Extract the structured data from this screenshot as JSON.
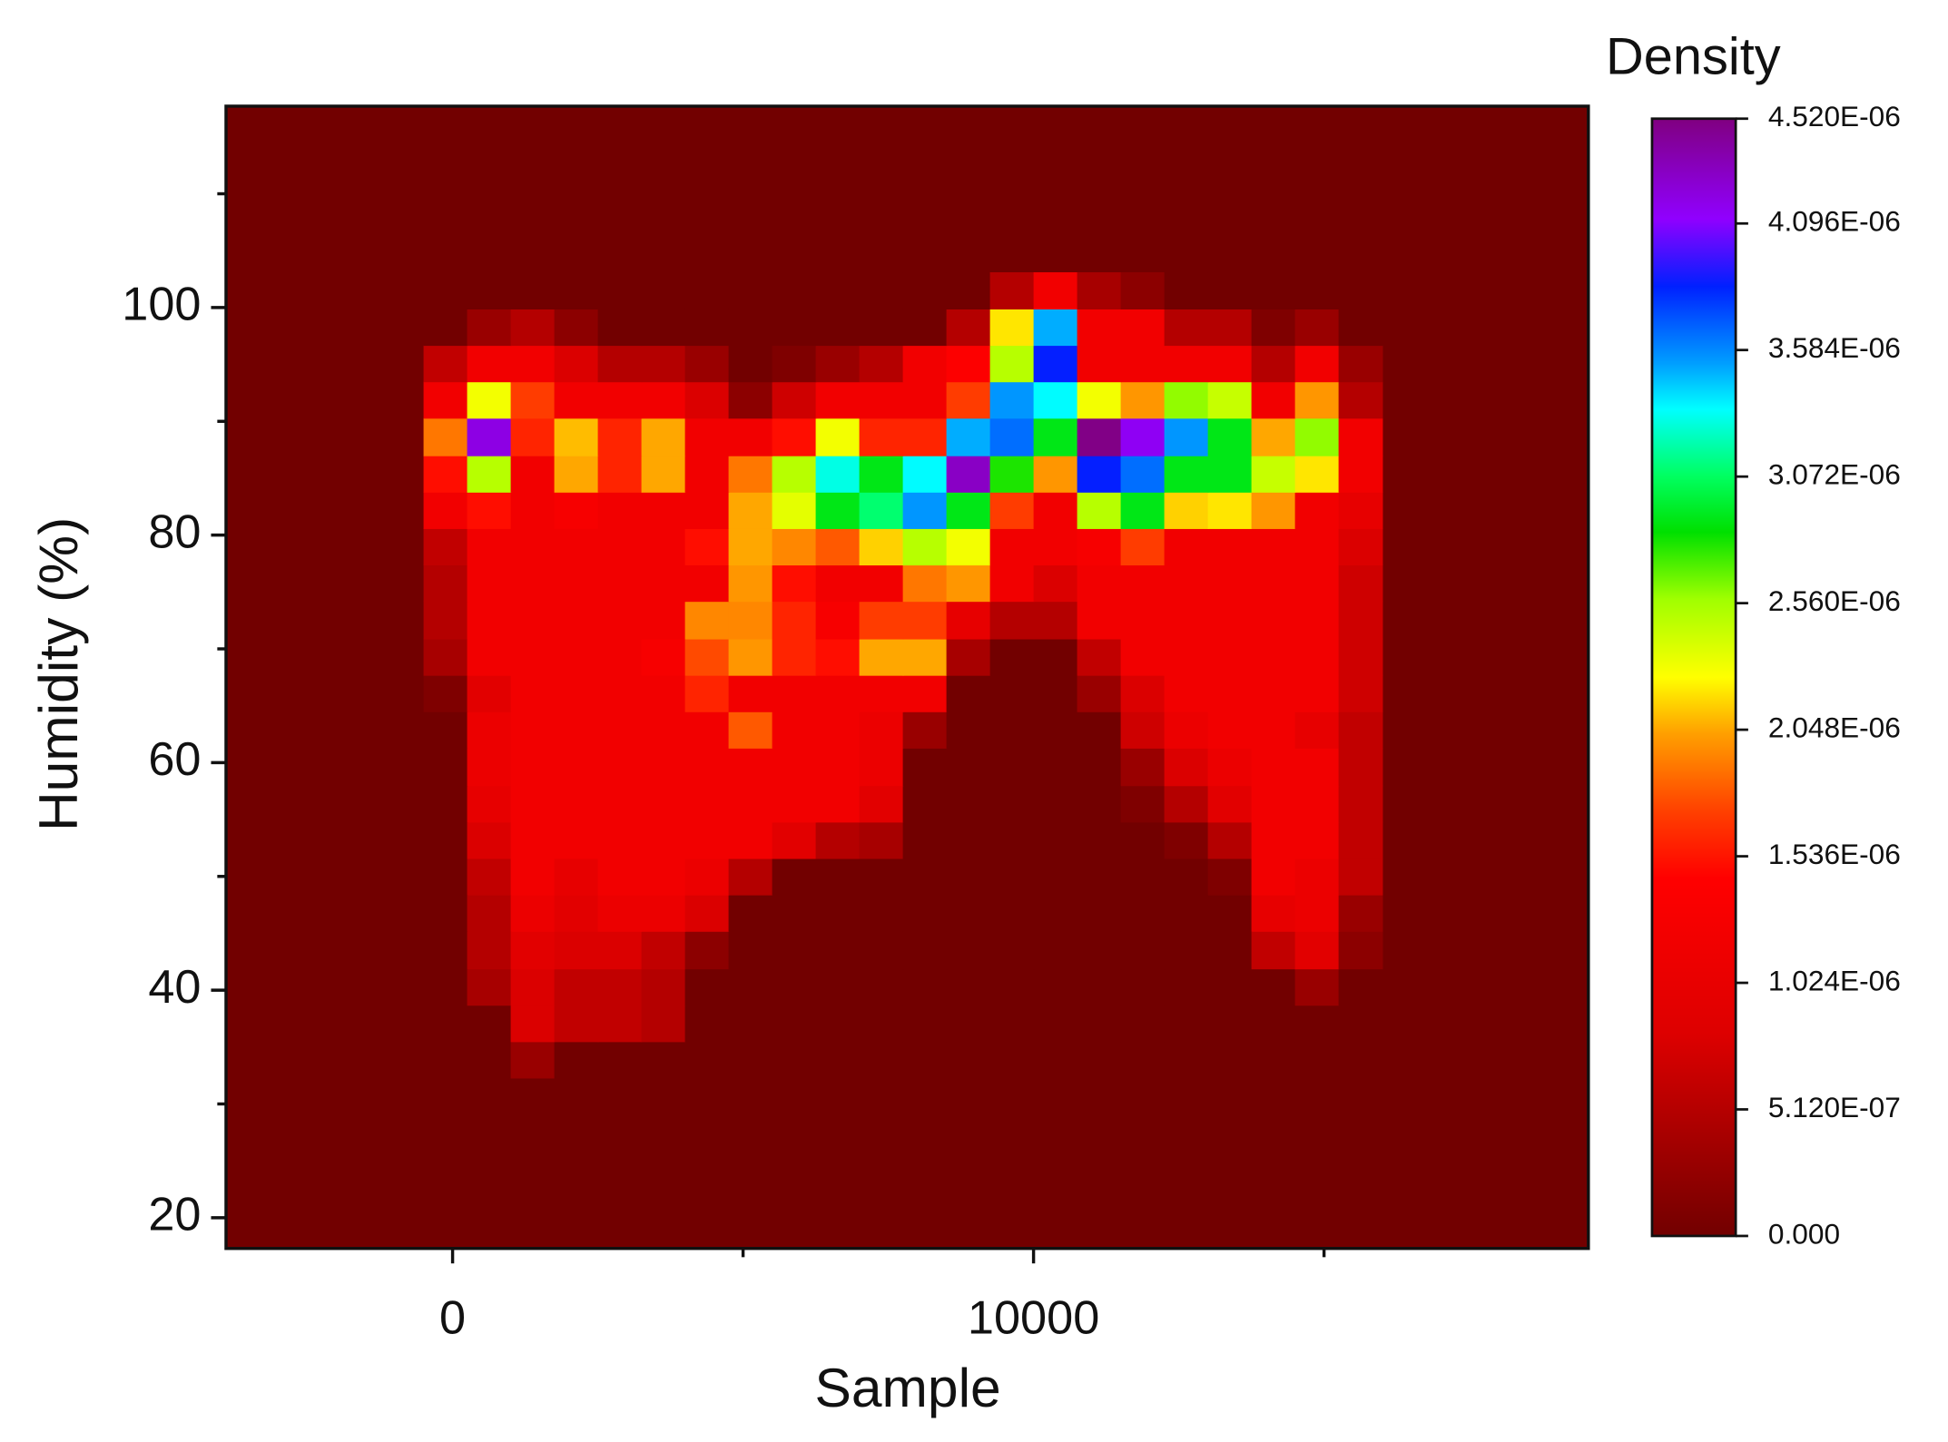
{
  "chart_data": {
    "type": "heatmap",
    "x_label": "Sample",
    "y_label": "Humidity (%)",
    "colorbar_title": "Density",
    "x_bins": [
      -500,
      250,
      1000,
      1750,
      2500,
      3250,
      4000,
      4750,
      5500,
      6250,
      7000,
      7750,
      8500,
      9250,
      10000,
      10750,
      11500,
      12250,
      13000,
      13750,
      14500,
      15250,
      16000
    ],
    "y_bins": [
      32.3,
      35.5,
      38.7,
      41.9,
      45.2,
      48.4,
      51.6,
      54.8,
      58.0,
      61.3,
      64.5,
      67.7,
      70.9,
      74.2,
      77.4,
      80.6,
      83.8,
      87.0,
      90.3,
      93.5,
      96.7,
      99.9,
      103.1
    ],
    "z": [
      [
        0,
        0,
        3e-07,
        0,
        0,
        0,
        0,
        0,
        0,
        0,
        0,
        0,
        0,
        0,
        0,
        0,
        0,
        0,
        0,
        0,
        0,
        0
      ],
      [
        0,
        0,
        8e-07,
        6e-07,
        6e-07,
        5e-07,
        0,
        0,
        0,
        0,
        0,
        0,
        0,
        0,
        0,
        0,
        0,
        0,
        0,
        0,
        0,
        0
      ],
      [
        0,
        4e-07,
        8e-07,
        6e-07,
        6e-07,
        5e-07,
        0,
        0,
        0,
        0,
        0,
        0,
        0,
        0,
        0,
        0,
        0,
        0,
        0,
        0,
        3e-07,
        0
      ],
      [
        0,
        5e-07,
        9e-07,
        8e-07,
        8e-07,
        6e-07,
        2e-07,
        0,
        0,
        0,
        0,
        0,
        0,
        0,
        0,
        0,
        0,
        0,
        0,
        6e-07,
        9e-07,
        2e-07
      ],
      [
        0,
        5e-07,
        1.1e-06,
        9e-07,
        1.1e-06,
        1.1e-06,
        8e-07,
        0,
        0,
        0,
        0,
        0,
        0,
        0,
        0,
        0,
        0,
        0,
        0,
        1e-06,
        1.1e-06,
        3e-07
      ],
      [
        0,
        6e-07,
        1.2e-06,
        1e-06,
        1.2e-06,
        1.2e-06,
        1.1e-06,
        5e-07,
        0,
        0,
        0,
        0,
        0,
        0,
        0,
        0,
        0,
        0,
        1e-07,
        1.2e-06,
        1.1e-06,
        6e-07
      ],
      [
        0,
        8e-07,
        1.2e-06,
        1.2e-06,
        1.2e-06,
        1.2e-06,
        1.2e-06,
        1.2e-06,
        9e-07,
        5e-07,
        4e-07,
        0,
        0,
        0,
        0,
        0,
        0,
        1e-07,
        5e-07,
        1.2e-06,
        1.2e-06,
        6e-07
      ],
      [
        0,
        1e-06,
        1.2e-06,
        1.2e-06,
        1.2e-06,
        1.2e-06,
        1.2e-06,
        1.2e-06,
        1.2e-06,
        1.2e-06,
        9e-07,
        0,
        0,
        0,
        0,
        0,
        1e-07,
        5e-07,
        9e-07,
        1.2e-06,
        1.2e-06,
        6e-07
      ],
      [
        0,
        1.1e-06,
        1.2e-06,
        1.2e-06,
        1.2e-06,
        1.2e-06,
        1.2e-06,
        1.2e-06,
        1.2e-06,
        1.2e-06,
        1.1e-06,
        0,
        0,
        0,
        0,
        0,
        3e-07,
        8e-07,
        1.1e-06,
        1.2e-06,
        1.2e-06,
        6e-07
      ],
      [
        0,
        1.1e-06,
        1.2e-06,
        1.2e-06,
        1.2e-06,
        1.2e-06,
        1.2e-06,
        1.8e-06,
        1.2e-06,
        1.2e-06,
        1.1e-06,
        3e-07,
        0,
        0,
        0,
        0,
        7e-07,
        1.1e-06,
        1.2e-06,
        1.2e-06,
        1e-06,
        6e-07
      ],
      [
        1e-07,
        9e-07,
        1.2e-06,
        1.2e-06,
        1.2e-06,
        1.2e-06,
        1.6e-06,
        1.2e-06,
        1.2e-06,
        1.2e-06,
        1.2e-06,
        1.2e-06,
        0,
        0,
        0,
        3e-07,
        8e-07,
        1.2e-06,
        1.2e-06,
        1.2e-06,
        1.2e-06,
        7e-07
      ],
      [
        4e-07,
        1.2e-06,
        1.2e-06,
        1.2e-06,
        1.2e-06,
        1.3e-06,
        1.75e-06,
        2e-06,
        1.6e-06,
        1.5e-06,
        2.05e-06,
        2.05e-06,
        4e-07,
        0,
        0,
        6e-07,
        1.2e-06,
        1.2e-06,
        1.2e-06,
        1.2e-06,
        1.2e-06,
        7e-07
      ],
      [
        5e-07,
        1.2e-06,
        1.2e-06,
        1.2e-06,
        1.2e-06,
        1.2e-06,
        1.95e-06,
        1.95e-06,
        1.6e-06,
        1.3e-06,
        1.7e-06,
        1.7e-06,
        1e-06,
        5e-07,
        5e-07,
        1.2e-06,
        1.2e-06,
        1.2e-06,
        1.2e-06,
        1.2e-06,
        1.2e-06,
        7e-07
      ],
      [
        5e-07,
        1.2e-06,
        1.2e-06,
        1.2e-06,
        1.2e-06,
        1.2e-06,
        1.2e-06,
        2e-06,
        1.5e-06,
        1.2e-06,
        1.2e-06,
        1.9e-06,
        2e-06,
        1.2e-06,
        8e-07,
        1.2e-06,
        1.2e-06,
        1.2e-06,
        1.2e-06,
        1.2e-06,
        1.2e-06,
        7e-07
      ],
      [
        6e-07,
        1.2e-06,
        1.2e-06,
        1.2e-06,
        1.2e-06,
        1.2e-06,
        1.5e-06,
        2.05e-06,
        1.95e-06,
        1.8e-06,
        2.15e-06,
        2.5e-06,
        2.3e-06,
        1.2e-06,
        1.2e-06,
        1.3e-06,
        1.7e-06,
        1.2e-06,
        1.2e-06,
        1.2e-06,
        1.2e-06,
        8e-07
      ],
      [
        1.2e-06,
        1.5e-06,
        1.2e-06,
        1.3e-06,
        1.2e-06,
        1.2e-06,
        1.2e-06,
        2.05e-06,
        2.35e-06,
        2.9e-06,
        3.1e-06,
        3.55e-06,
        2.9e-06,
        1.7e-06,
        1.2e-06,
        2.5e-06,
        2.9e-06,
        2.15e-06,
        2.2e-06,
        2e-06,
        1.2e-06,
        1e-06
      ],
      [
        1.5e-06,
        2.5e-06,
        1.2e-06,
        2.05e-06,
        1.6e-06,
        2.05e-06,
        1.2e-06,
        1.9e-06,
        2.5e-06,
        3.3e-06,
        2.9e-06,
        3.35e-06,
        4.3e-06,
        2.8e-06,
        2e-06,
        3.85e-06,
        3.65e-06,
        2.9e-06,
        2.9e-06,
        2.45e-06,
        2.2e-06,
        1.2e-06
      ],
      [
        1.9e-06,
        4.2e-06,
        1.6e-06,
        2.1e-06,
        1.6e-06,
        2.05e-06,
        1.2e-06,
        1.2e-06,
        1.5e-06,
        2.3e-06,
        1.6e-06,
        1.6e-06,
        3.5e-06,
        3.65e-06,
        2.9e-06,
        4.5e-06,
        4.15e-06,
        3.55e-06,
        2.9e-06,
        2.05e-06,
        2.6e-06,
        1.2e-06
      ],
      [
        1.2e-06,
        2.3e-06,
        1.7e-06,
        1.2e-06,
        1.2e-06,
        1.2e-06,
        8e-07,
        2e-07,
        7e-07,
        1.2e-06,
        1.2e-06,
        1.2e-06,
        1.7e-06,
        3.55e-06,
        3.35e-06,
        2.3e-06,
        2e-06,
        2.6e-06,
        2.45e-06,
        1.2e-06,
        2e-06,
        5e-07
      ],
      [
        6e-07,
        1.2e-06,
        1.2e-06,
        8e-07,
        5e-07,
        5e-07,
        3e-07,
        0,
        1e-07,
        3e-07,
        5e-07,
        1.2e-06,
        1.4e-06,
        2.5e-06,
        3.85e-06,
        1.2e-06,
        1.2e-06,
        1.2e-06,
        1.2e-06,
        5e-07,
        1.2e-06,
        3e-07
      ],
      [
        0,
        3e-07,
        5e-07,
        2e-07,
        0,
        0,
        0,
        0,
        0,
        0,
        0,
        0,
        5e-07,
        2.2e-06,
        3.5e-06,
        1.2e-06,
        1.2e-06,
        5e-07,
        5e-07,
        1e-07,
        3e-07,
        0
      ],
      [
        0,
        0,
        0,
        0,
        0,
        0,
        0,
        0,
        0,
        0,
        0,
        0,
        0,
        5e-07,
        1.2e-06,
        4e-07,
        2e-07,
        0,
        0,
        0,
        0,
        0
      ]
    ],
    "xlim": [
      -3900,
      19550
    ],
    "ylim": [
      17.3,
      117.7
    ],
    "xticks": [
      0,
      10000
    ],
    "x_minor_ticks": [
      5000,
      15000
    ],
    "yticks": [
      20,
      40,
      60,
      80,
      100
    ],
    "y_minor_ticks": [
      30,
      50,
      70,
      90,
      110
    ],
    "zlim": [
      0,
      4.52e-06
    ],
    "zticks": [
      {
        "value": 0,
        "label": "0.000"
      },
      {
        "value": 5.12e-07,
        "label": "5.120E-07"
      },
      {
        "value": 1.024e-06,
        "label": "1.024E-06"
      },
      {
        "value": 1.536e-06,
        "label": "1.536E-06"
      },
      {
        "value": 2.048e-06,
        "label": "2.048E-06"
      },
      {
        "value": 2.56e-06,
        "label": "2.560E-06"
      },
      {
        "value": 3.072e-06,
        "label": "3.072E-06"
      },
      {
        "value": 3.584e-06,
        "label": "3.584E-06"
      },
      {
        "value": 4.096e-06,
        "label": "4.096E-06"
      },
      {
        "value": 4.52e-06,
        "label": "4.520E-06"
      }
    ],
    "colorscale": [
      [
        0,
        "#720000"
      ],
      [
        0.18,
        "#dd0000"
      ],
      [
        0.32,
        "#ff0000"
      ],
      [
        0.38,
        "#ff4000"
      ],
      [
        0.45,
        "#ffa000"
      ],
      [
        0.5,
        "#ffff00"
      ],
      [
        0.57,
        "#a0ff00"
      ],
      [
        0.63,
        "#00e000"
      ],
      [
        0.68,
        "#00ff60"
      ],
      [
        0.74,
        "#00ffff"
      ],
      [
        0.78,
        "#00a0ff"
      ],
      [
        0.85,
        "#0020ff"
      ],
      [
        0.91,
        "#9000ff"
      ],
      [
        1,
        "#800080"
      ]
    ]
  }
}
